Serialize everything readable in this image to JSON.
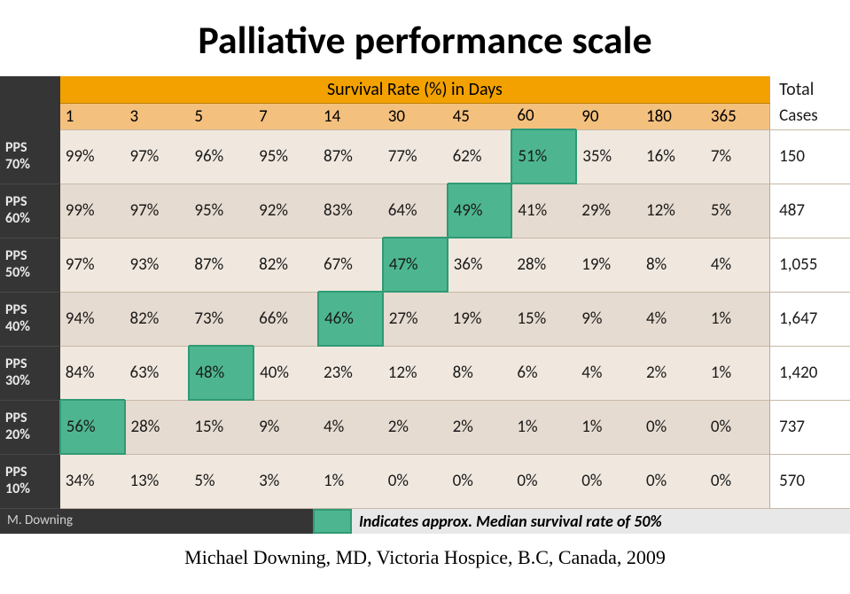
{
  "title": "Palliative performance scale",
  "table": {
    "header_band_label": "Survival Rate (%) in Days",
    "total_header_top": "Total",
    "total_header_bottom": "Cases",
    "day_columns": [
      "1",
      "3",
      "5",
      "7",
      "14",
      "30",
      "45",
      "60",
      "90",
      "180",
      "365"
    ],
    "rows": [
      {
        "label_top": "PPS",
        "label_bottom": "70%",
        "median_col": 7,
        "cells": [
          "99%",
          "97%",
          "96%",
          "95%",
          "87%",
          "77%",
          "62%",
          "51%",
          "35%",
          "16%",
          "7%"
        ],
        "total": "150"
      },
      {
        "label_top": "PPS",
        "label_bottom": "60%",
        "median_col": 6,
        "cells": [
          "99%",
          "97%",
          "95%",
          "92%",
          "83%",
          "64%",
          "49%",
          "41%",
          "29%",
          "12%",
          "5%"
        ],
        "total": "487"
      },
      {
        "label_top": "PPS",
        "label_bottom": "50%",
        "median_col": 5,
        "cells": [
          "97%",
          "93%",
          "87%",
          "82%",
          "67%",
          "47%",
          "36%",
          "28%",
          "19%",
          "8%",
          "4%"
        ],
        "total": "1,055"
      },
      {
        "label_top": "PPS",
        "label_bottom": "40%",
        "median_col": 4,
        "cells": [
          "94%",
          "82%",
          "73%",
          "66%",
          "46%",
          "27%",
          "19%",
          "15%",
          "9%",
          "4%",
          "1%"
        ],
        "total": "1,647"
      },
      {
        "label_top": "PPS",
        "label_bottom": "30%",
        "median_col": 2,
        "cells": [
          "84%",
          "63%",
          "48%",
          "40%",
          "23%",
          "12%",
          "8%",
          "6%",
          "4%",
          "2%",
          "1%"
        ],
        "total": "1,420"
      },
      {
        "label_top": "PPS",
        "label_bottom": "20%",
        "median_col": 0,
        "cells": [
          "56%",
          "28%",
          "15%",
          "9%",
          "4%",
          "2%",
          "2%",
          "1%",
          "1%",
          "0%",
          "0%"
        ],
        "total": "737"
      },
      {
        "label_top": "PPS",
        "label_bottom": "10%",
        "median_col": -1,
        "cells": [
          "34%",
          "13%",
          "5%",
          "3%",
          "1%",
          "0%",
          "0%",
          "0%",
          "0%",
          "0%",
          "0%"
        ],
        "total": "570"
      }
    ]
  },
  "footer": {
    "author": "M. Downing",
    "legend": "Indicates approx. Median survival rate of 50%"
  },
  "citation": "Michael Downing, MD, Victoria Hospice, B.C, Canada, 2009",
  "colors": {
    "band_orange": "#f2a100",
    "header_peach": "#f3c07e",
    "row_odd": "#f0e8df",
    "row_even": "#e6dbd0",
    "median_fill": "#4db690",
    "median_border": "#2f9a74",
    "rowhdr_bg": "#353535",
    "footer_legend_bg": "#e8e8e8"
  }
}
